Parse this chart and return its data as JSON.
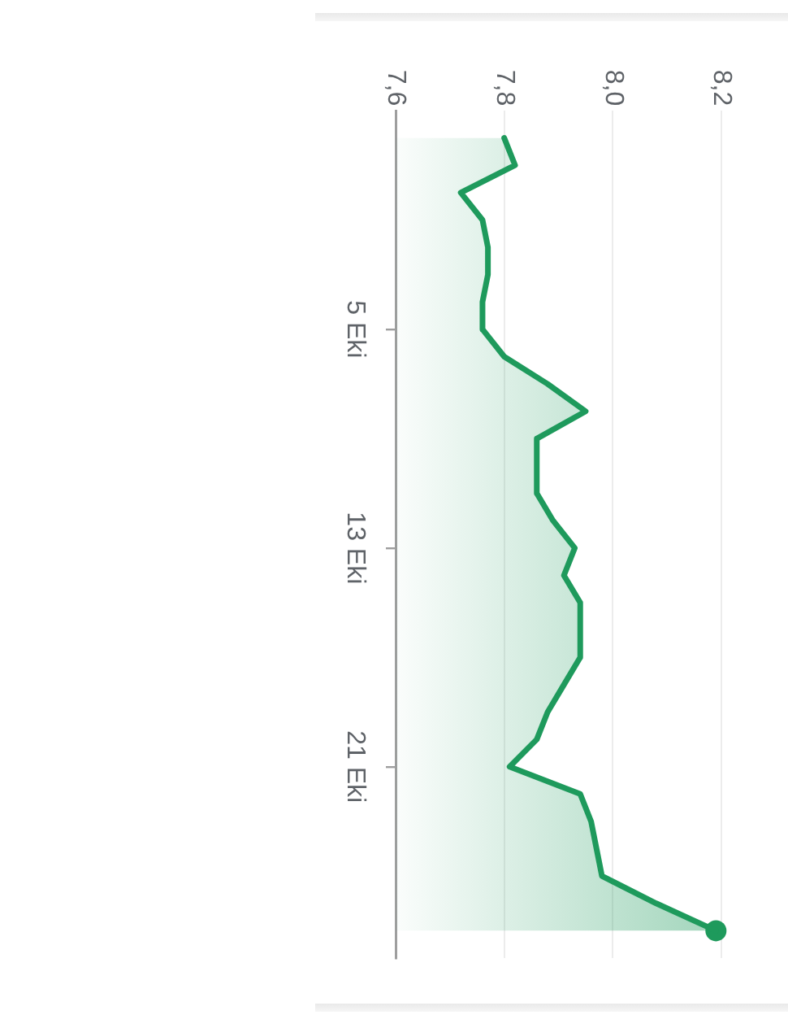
{
  "chart_data": {
    "type": "area",
    "orientation": "horizontal",
    "x": [
      "--09-28",
      "--09-29",
      "--09-30",
      "--10-01",
      "--10-02",
      "--10-03",
      "--10-04",
      "--10-05",
      "--10-06",
      "--10-07",
      "--10-08",
      "--10-09",
      "--10-10",
      "--10-11",
      "--10-12",
      "--10-13",
      "--10-14",
      "--10-15",
      "--10-16",
      "--10-17",
      "--10-18",
      "--10-19",
      "--10-20",
      "--10-21",
      "--10-22",
      "--10-23",
      "--10-24",
      "--10-25",
      "--10-26",
      "--10-27"
    ],
    "series": [
      {
        "color": "#1e9a5c",
        "values": [
          7.8,
          7.82,
          7.72,
          7.76,
          7.77,
          7.77,
          7.76,
          7.76,
          7.8,
          7.88,
          7.95,
          7.86,
          7.86,
          7.86,
          7.89,
          7.93,
          7.91,
          7.94,
          7.94,
          7.94,
          7.91,
          7.88,
          7.86,
          7.81,
          7.94,
          7.96,
          7.97,
          7.98,
          8.08,
          8.19
        ]
      },
      {
        "type": "scatter",
        "marker": "circle",
        "color": "#1e9a5c",
        "x": [
          "--10-27"
        ],
        "values": [
          8.19
        ]
      }
    ],
    "xlim": [
      7.6,
      8.2
    ],
    "xticks": [
      {
        "value": 7.6,
        "label": "7,6"
      },
      {
        "value": 7.8,
        "label": "7,8"
      },
      {
        "value": 8.0,
        "label": "8,0"
      },
      {
        "value": 8.2,
        "label": "8,2"
      }
    ],
    "ylim": [
      "--10-28",
      "--09-27"
    ],
    "yticks": [
      {
        "value": "--10-05",
        "label": "5 Eki"
      },
      {
        "value": "--10-13",
        "label": "13 Eki"
      },
      {
        "value": "--10-21",
        "label": "21 Eki"
      }
    ],
    "grid": "x"
  }
}
